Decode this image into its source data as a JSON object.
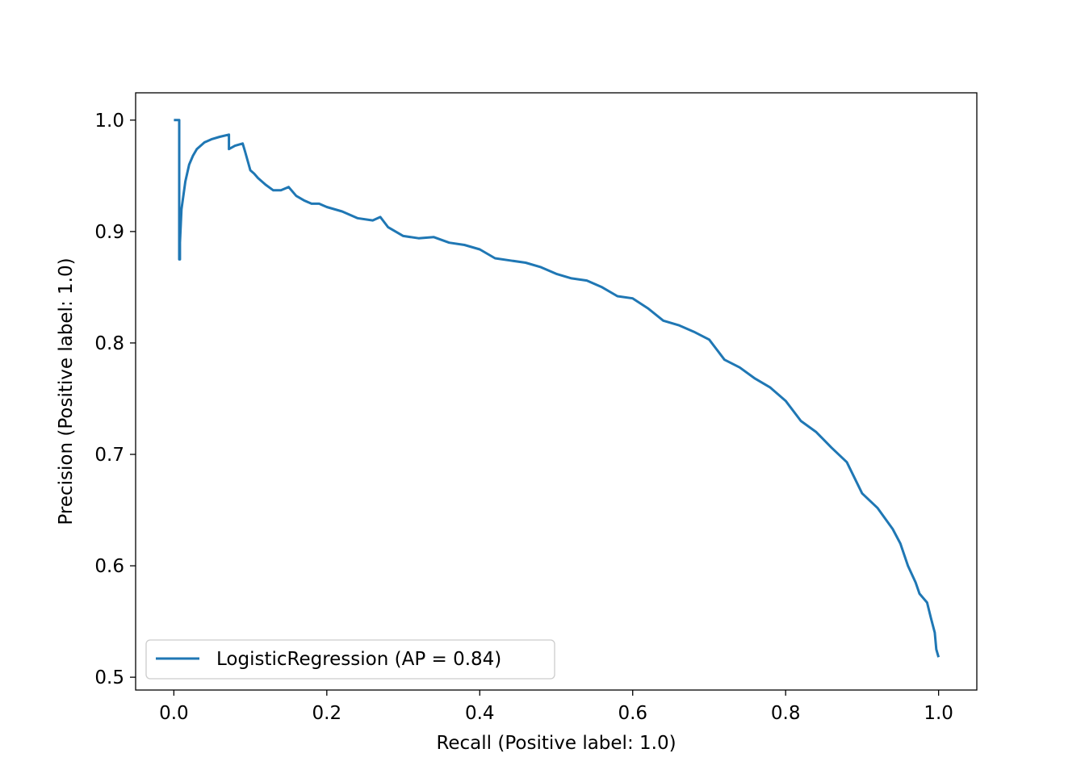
{
  "chart_data": {
    "type": "line",
    "title": "",
    "xlabel": "Recall (Positive label: 1.0)",
    "ylabel": "Precision (Positive label: 1.0)",
    "xlim": [
      -0.05,
      1.05
    ],
    "ylim": [
      0.4885,
      1.0245
    ],
    "grid": false,
    "legend_position": "lower-left",
    "x_ticks": [
      0.0,
      0.2,
      0.4,
      0.6,
      0.8,
      1.0
    ],
    "x_tick_labels": [
      "0.0",
      "0.2",
      "0.4",
      "0.6",
      "0.8",
      "1.0"
    ],
    "y_ticks": [
      0.5,
      0.6,
      0.7,
      0.8,
      0.9,
      1.0
    ],
    "y_tick_labels": [
      "0.5",
      "0.6",
      "0.7",
      "0.8",
      "0.9",
      "1.0"
    ],
    "series": [
      {
        "name": "LogisticRegression (AP = 0.84)",
        "color": "#1f77b4",
        "x": [
          0.0,
          0.007,
          0.007,
          0.008,
          0.008,
          0.01,
          0.015,
          0.02,
          0.025,
          0.03,
          0.04,
          0.05,
          0.06,
          0.072,
          0.072,
          0.08,
          0.09,
          0.093,
          0.1,
          0.105,
          0.11,
          0.12,
          0.13,
          0.14,
          0.15,
          0.16,
          0.17,
          0.18,
          0.19,
          0.2,
          0.22,
          0.24,
          0.26,
          0.27,
          0.28,
          0.3,
          0.32,
          0.34,
          0.36,
          0.38,
          0.4,
          0.42,
          0.44,
          0.46,
          0.48,
          0.5,
          0.52,
          0.54,
          0.56,
          0.58,
          0.6,
          0.62,
          0.64,
          0.66,
          0.68,
          0.7,
          0.72,
          0.74,
          0.76,
          0.78,
          0.8,
          0.82,
          0.84,
          0.86,
          0.88,
          0.9,
          0.92,
          0.94,
          0.95,
          0.96,
          0.97,
          0.975,
          0.985,
          0.99,
          0.995,
          0.997,
          1.0
        ],
        "y": [
          1.0,
          1.0,
          0.875,
          0.875,
          0.89,
          0.92,
          0.945,
          0.96,
          0.968,
          0.974,
          0.98,
          0.983,
          0.985,
          0.987,
          0.974,
          0.977,
          0.979,
          0.972,
          0.955,
          0.952,
          0.948,
          0.942,
          0.937,
          0.937,
          0.94,
          0.932,
          0.928,
          0.925,
          0.925,
          0.922,
          0.918,
          0.912,
          0.91,
          0.913,
          0.904,
          0.896,
          0.894,
          0.895,
          0.89,
          0.888,
          0.884,
          0.876,
          0.874,
          0.872,
          0.868,
          0.862,
          0.858,
          0.856,
          0.85,
          0.842,
          0.84,
          0.831,
          0.82,
          0.816,
          0.81,
          0.803,
          0.785,
          0.778,
          0.768,
          0.76,
          0.748,
          0.73,
          0.72,
          0.706,
          0.693,
          0.665,
          0.652,
          0.633,
          0.62,
          0.6,
          0.585,
          0.575,
          0.567,
          0.553,
          0.54,
          0.525,
          0.518
        ]
      }
    ]
  }
}
